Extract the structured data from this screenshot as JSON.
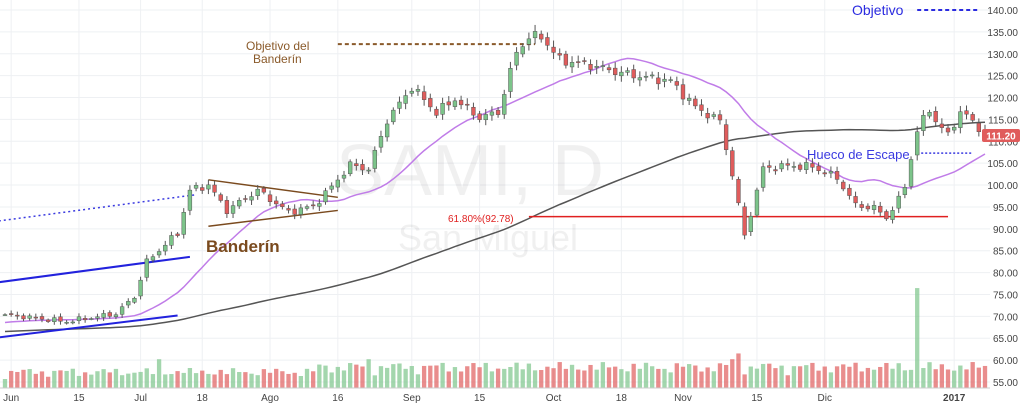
{
  "chart_data": {
    "type": "candlestick",
    "watermark": {
      "symbol": "SAMI, D",
      "name": "San Miguel"
    },
    "y_axis": {
      "min": 55,
      "max": 142,
      "ticks": [
        55,
        60,
        65,
        70,
        75,
        80,
        85,
        90,
        95,
        100,
        105,
        110,
        115,
        120,
        125,
        130,
        135,
        140
      ],
      "tick_labels": [
        "55.00",
        "60.00",
        "65.00",
        "70.00",
        "75.00",
        "80.00",
        "85.00",
        "90.00",
        "95.00",
        "100.00",
        "105.00",
        "110.00",
        "115.00",
        "120.00",
        "125.00",
        "130.00",
        "135.00",
        "140.00"
      ]
    },
    "x_axis": {
      "count": 160,
      "ticks": [
        {
          "i": 1,
          "label": "Jun"
        },
        {
          "i": 12,
          "label": "15"
        },
        {
          "i": 22,
          "label": "Jul"
        },
        {
          "i": 32,
          "label": "18"
        },
        {
          "i": 43,
          "label": "Ago"
        },
        {
          "i": 54,
          "label": "16"
        },
        {
          "i": 66,
          "label": "Sep"
        },
        {
          "i": 77,
          "label": "15"
        },
        {
          "i": 89,
          "label": "Oct"
        },
        {
          "i": 100,
          "label": "18"
        },
        {
          "i": 110,
          "label": "Nov"
        },
        {
          "i": 122,
          "label": "15"
        },
        {
          "i": 133,
          "label": "Dic"
        },
        {
          "i": 154,
          "label": "2017"
        }
      ]
    },
    "last_price": {
      "value": 111.2,
      "label": "111.20",
      "color": "#e05c5c"
    },
    "colors": {
      "up": "#7cc48a",
      "down": "#e05c5c",
      "ma_short": "#c07ce8",
      "ma_long": "#555555"
    },
    "annotations": {
      "banderin": "Banderín",
      "objetivo_banderin": [
        "Objetivo del",
        "Banderín"
      ],
      "objetivo": "Objetivo",
      "hueco": "Hueco de Escape",
      "fib": "61.80%(92.78)"
    },
    "levels": {
      "objetivo_banderin": 132.2,
      "objetivo": 140,
      "hueco": 107.3,
      "fib": 92.78
    },
    "anchors": [
      [
        0,
        70.4
      ],
      [
        10,
        68.8
      ],
      [
        18,
        70.6
      ],
      [
        21,
        74.5
      ],
      [
        23,
        82.5
      ],
      [
        28,
        89
      ],
      [
        30,
        98.8
      ],
      [
        33,
        100
      ],
      [
        36,
        94.2
      ],
      [
        41,
        98.8
      ],
      [
        46,
        93.8
      ],
      [
        50,
        95.2
      ],
      [
        53,
        99.6
      ],
      [
        56,
        104.6
      ],
      [
        59,
        103.6
      ],
      [
        62,
        114.8
      ],
      [
        66,
        122.4
      ],
      [
        70,
        116.6
      ],
      [
        73,
        119.6
      ],
      [
        77,
        115.4
      ],
      [
        80,
        116.6
      ],
      [
        83,
        130.4
      ],
      [
        85,
        133.8
      ],
      [
        87,
        134
      ],
      [
        90,
        128.6
      ],
      [
        95,
        127.4
      ],
      [
        100,
        125.6
      ],
      [
        104,
        124.6
      ],
      [
        108,
        123.8
      ],
      [
        112,
        117.8
      ],
      [
        116,
        114.6
      ],
      [
        118,
        102.4
      ],
      [
        120,
        88.4
      ],
      [
        123,
        103.8
      ],
      [
        127,
        104.4
      ],
      [
        131,
        104.2
      ],
      [
        135,
        101.6
      ],
      [
        138,
        95.4
      ],
      [
        141,
        94.8
      ],
      [
        143,
        92.6
      ],
      [
        145,
        96.6
      ],
      [
        146,
        99.8
      ],
      [
        148,
        112.4
      ],
      [
        150,
        117.4
      ],
      [
        151,
        114.6
      ],
      [
        153,
        111.4
      ],
      [
        155,
        116.8
      ],
      [
        157,
        114.6
      ],
      [
        159,
        111.2
      ]
    ],
    "volume_spikes": [
      [
        148,
        2.6
      ],
      [
        119,
        1.8
      ],
      [
        118,
        1.5
      ],
      [
        59,
        1.5
      ],
      [
        25,
        1.5
      ],
      [
        56,
        1.3
      ],
      [
        76,
        1.3
      ]
    ]
  }
}
